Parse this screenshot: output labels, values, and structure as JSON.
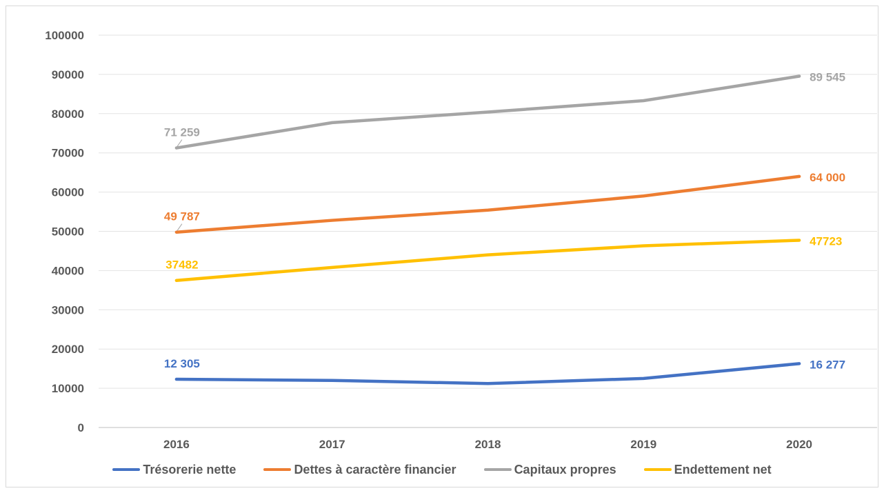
{
  "chart_data": {
    "type": "line",
    "title": "",
    "xlabel": "",
    "ylabel": "",
    "categories": [
      "2016",
      "2017",
      "2018",
      "2019",
      "2020"
    ],
    "ylim": [
      0,
      100000
    ],
    "yticks": [
      "0",
      "10000",
      "20000",
      "30000",
      "40000",
      "50000",
      "60000",
      "70000",
      "80000",
      "90000",
      "100000"
    ],
    "grid": true,
    "legend_position": "bottom",
    "series": [
      {
        "name": "Trésorerie nette",
        "color": "#4472C4",
        "values": [
          12305,
          12000,
          11200,
          12500,
          16277
        ],
        "labels": [
          "12 305",
          "",
          "",
          "",
          "16 277"
        ]
      },
      {
        "name": "Dettes à caractère financier",
        "color": "#ED7D31",
        "values": [
          49787,
          52800,
          55400,
          59000,
          64000
        ],
        "labels": [
          "49 787",
          "",
          "",
          "",
          "64 000"
        ]
      },
      {
        "name": "Capitaux propres",
        "color": "#A5A5A5",
        "values": [
          71259,
          77700,
          80400,
          83300,
          89545
        ],
        "labels": [
          "71 259",
          "",
          "",
          "",
          "89 545"
        ]
      },
      {
        "name": "Endettement net",
        "color": "#FFC000",
        "values": [
          37482,
          40800,
          44000,
          46300,
          47723
        ],
        "labels": [
          "37482",
          "",
          "",
          "",
          "47723"
        ]
      }
    ]
  }
}
